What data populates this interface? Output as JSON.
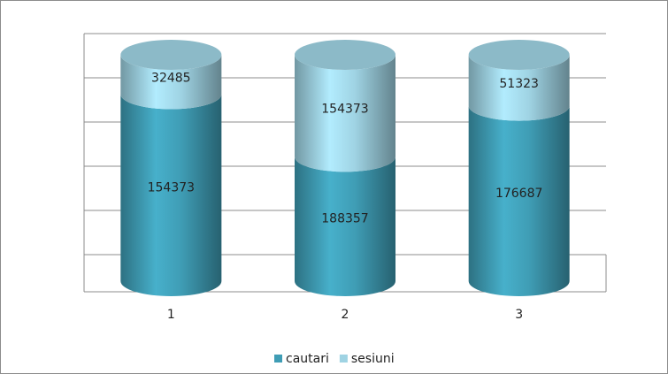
{
  "chart_data": {
    "type": "bar",
    "stacking": "percent",
    "shape": "cylinder",
    "categories": [
      "1",
      "2",
      "3"
    ],
    "series": [
      {
        "name": "cautari",
        "color": "#3f9db5",
        "values": [
          154373,
          188357,
          176687
        ]
      },
      {
        "name": "sesiuni",
        "color": "#9fd3e3",
        "values": [
          32485,
          154373,
          51323
        ]
      }
    ],
    "ylim": [
      0,
      100
    ],
    "yticks": [
      0,
      20,
      40,
      60,
      80,
      100
    ],
    "grid": true,
    "legend": "bottom"
  }
}
